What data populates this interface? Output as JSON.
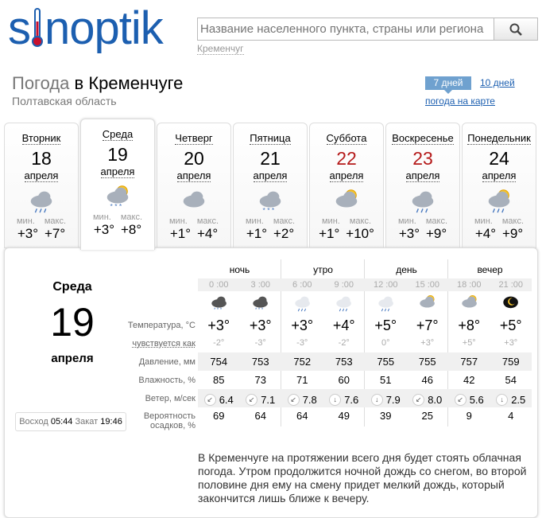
{
  "logo": "sinoptik",
  "search": {
    "placeholder": "Название населенного пункта, страны или региона",
    "city_link": "Кременчуг"
  },
  "title": {
    "prefix": "Погода",
    "city": "в Кременчуге",
    "region": "Полтавская область"
  },
  "range_tabs": {
    "seven": "7 дней",
    "ten": "10 дней",
    "map": "погода на карте"
  },
  "days": [
    {
      "name": "Вторник",
      "date": "18",
      "month": "апреля",
      "min": "+3°",
      "max": "+7°",
      "icon": "cloud-rain",
      "weekend": false
    },
    {
      "name": "Среда",
      "date": "19",
      "month": "апреля",
      "min": "+3°",
      "max": "+8°",
      "icon": "sun-cloud-snow",
      "weekend": false,
      "selected": true
    },
    {
      "name": "Четверг",
      "date": "20",
      "month": "апреля",
      "min": "+1°",
      "max": "+4°",
      "icon": "cloud",
      "weekend": false
    },
    {
      "name": "Пятница",
      "date": "21",
      "month": "апреля",
      "min": "+1°",
      "max": "+2°",
      "icon": "cloud-snow",
      "weekend": false
    },
    {
      "name": "Суббота",
      "date": "22",
      "month": "апреля",
      "min": "+1°",
      "max": "+10°",
      "icon": "sun-cloud",
      "weekend": true
    },
    {
      "name": "Воскресенье",
      "date": "23",
      "month": "апреля",
      "min": "+3°",
      "max": "+9°",
      "icon": "cloud-rain",
      "weekend": true
    },
    {
      "name": "Понедельник",
      "date": "24",
      "month": "апреля",
      "min": "+4°",
      "max": "+9°",
      "icon": "sun-cloud-rain",
      "weekend": false
    }
  ],
  "min_label": "мин.",
  "max_label": "макс.",
  "detail": {
    "day": "Среда",
    "date": "19",
    "month": "апреля",
    "sunrise_label": "Восход",
    "sunrise": "05:44",
    "sunset_label": "Закат",
    "sunset": "19:46",
    "periods": [
      "ночь",
      "утро",
      "день",
      "вечер"
    ],
    "times": [
      "0 :00",
      "3 :00",
      "6 :00",
      "9 :00",
      "12 :00",
      "15 :00",
      "18 :00",
      "21 :00"
    ],
    "icons": [
      "cloud-snow-dark",
      "cloud-snow-dark",
      "cloud-rain-light",
      "cloud-rain-light",
      "cloud-rain-light",
      "sun-cloud",
      "sun-cloud",
      "moon"
    ],
    "labels": {
      "temp": "Температура, °C",
      "feels": "чувствуется как",
      "pressure": "Давление, мм",
      "humidity": "Влажность, %",
      "wind": "Ветер, м/сек",
      "precip1": "Вероятность",
      "precip2": "осадков, %"
    },
    "temp": [
      "+3°",
      "+3°",
      "+3°",
      "+4°",
      "+5°",
      "+7°",
      "+8°",
      "+5°"
    ],
    "feels": [
      "-2°",
      "-3°",
      "-3°",
      "-2°",
      "0°",
      "+3°",
      "+5°",
      "+3°"
    ],
    "pressure": [
      "754",
      "753",
      "752",
      "753",
      "755",
      "755",
      "757",
      "759"
    ],
    "humidity": [
      "85",
      "73",
      "71",
      "60",
      "51",
      "46",
      "42",
      "54"
    ],
    "wind_dir": [
      "↙",
      "↙",
      "↙",
      "↓",
      "↓",
      "↙",
      "↙",
      "↓"
    ],
    "wind": [
      "6.4",
      "7.1",
      "7.8",
      "7.6",
      "7.9",
      "8.0",
      "5.6",
      "2.5"
    ],
    "precip": [
      "69",
      "64",
      "64",
      "49",
      "39",
      "25",
      "9",
      "4"
    ],
    "description": "В Кременчуге на протяжении всего дня будет стоять облачная погода. Утром продолжится ночной дождь со снегом, во второй половине дня ему на смену придет мелкий дождь, который закончится лишь ближе к вечеру."
  },
  "colors": {
    "brand": "#1c5fb0",
    "weekend": "#b51a1a",
    "tab": "#6fa1cf"
  }
}
